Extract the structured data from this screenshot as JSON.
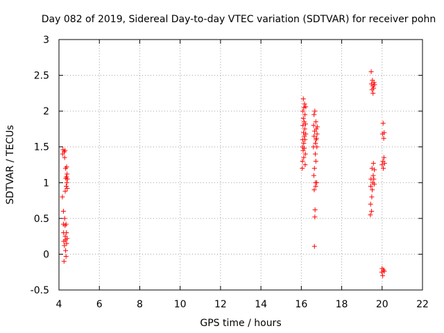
{
  "chart_data": {
    "type": "scatter",
    "title": "Day 082 of 2019, Sidereal Day-to-day VTEC variation (SDTVAR) for receiver pohn",
    "xlabel": "GPS time / hours",
    "ylabel": "SDTVAR / TECUs",
    "xlim": [
      4,
      22
    ],
    "ylim": [
      -0.5,
      3
    ],
    "xticks": [
      4,
      6,
      8,
      10,
      12,
      14,
      16,
      18,
      20,
      22
    ],
    "yticks": [
      -0.5,
      0,
      0.5,
      1,
      1.5,
      2,
      2.5,
      3
    ],
    "xtick_labels": [
      "4",
      "6",
      "8",
      "10",
      "12",
      "14",
      "16",
      "18",
      "20",
      "22"
    ],
    "ytick_labels": [
      "-0.5",
      "0",
      "0.5",
      "1",
      "1.5",
      "2",
      "2.5",
      "3"
    ],
    "grid": true,
    "marker": "plus",
    "color": "#ff0000",
    "series": [
      {
        "name": "SDTVAR",
        "points": [
          [
            4.17,
            0.8
          ],
          [
            4.18,
            1.4
          ],
          [
            4.2,
            1.46
          ],
          [
            4.22,
            0.6
          ],
          [
            4.22,
            0.42
          ],
          [
            4.23,
            0.3
          ],
          [
            4.24,
            0.18
          ],
          [
            4.25,
            -0.1
          ],
          [
            4.26,
            1.43
          ],
          [
            4.27,
            0.12
          ],
          [
            4.28,
            0.5
          ],
          [
            4.28,
            1.35
          ],
          [
            4.3,
            0.4
          ],
          [
            4.3,
            1.45
          ],
          [
            4.31,
            0.88
          ],
          [
            4.31,
            0.25
          ],
          [
            4.32,
            0.2
          ],
          [
            4.33,
            1.2
          ],
          [
            4.33,
            0.05
          ],
          [
            4.34,
            1.06
          ],
          [
            4.35,
            0.42
          ],
          [
            4.35,
            -0.03
          ],
          [
            4.36,
            0.95
          ],
          [
            4.37,
            1.08
          ],
          [
            4.37,
            0.3
          ],
          [
            4.38,
            1.22
          ],
          [
            4.38,
            0.15
          ],
          [
            4.39,
            1.0
          ],
          [
            4.4,
            1.12
          ],
          [
            4.4,
            0.22
          ],
          [
            4.41,
            0.92
          ],
          [
            4.42,
            1.05
          ],
          [
            16.05,
            1.2
          ],
          [
            16.06,
            1.3
          ],
          [
            16.06,
            1.5
          ],
          [
            16.07,
            1.6
          ],
          [
            16.08,
            1.8
          ],
          [
            16.08,
            2.0
          ],
          [
            16.09,
            1.45
          ],
          [
            16.1,
            1.9
          ],
          [
            16.1,
            2.17
          ],
          [
            16.11,
            1.7
          ],
          [
            16.12,
            1.35
          ],
          [
            16.12,
            1.55
          ],
          [
            16.13,
            2.05
          ],
          [
            16.14,
            1.85
          ],
          [
            16.15,
            1.65
          ],
          [
            16.15,
            1.48
          ],
          [
            16.16,
            2.1
          ],
          [
            16.17,
            1.75
          ],
          [
            16.18,
            1.95
          ],
          [
            16.18,
            1.6
          ],
          [
            16.19,
            1.25
          ],
          [
            16.2,
            1.4
          ],
          [
            16.21,
            1.82
          ],
          [
            16.22,
            1.68
          ],
          [
            16.22,
            2.06
          ],
          [
            16.6,
            1.5
          ],
          [
            16.61,
            1.8
          ],
          [
            16.62,
            1.1
          ],
          [
            16.63,
            1.65
          ],
          [
            16.63,
            1.95
          ],
          [
            16.64,
            0.9
          ],
          [
            16.65,
            0.11
          ],
          [
            16.65,
            1.2
          ],
          [
            16.66,
            1.72
          ],
          [
            16.67,
            0.52
          ],
          [
            16.67,
            2.0
          ],
          [
            16.68,
            0.62
          ],
          [
            16.69,
            1.4
          ],
          [
            16.7,
            1.0
          ],
          [
            16.7,
            1.55
          ],
          [
            16.71,
            0.95
          ],
          [
            16.72,
            1.3
          ],
          [
            16.72,
            1.85
          ],
          [
            16.73,
            1.6
          ],
          [
            16.74,
            1.75
          ],
          [
            16.75,
            1.62
          ],
          [
            16.76,
            1.0
          ],
          [
            16.77,
            1.5
          ],
          [
            16.78,
            1.68
          ],
          [
            16.79,
            1.78
          ],
          [
            19.42,
            0.55
          ],
          [
            19.43,
            0.7
          ],
          [
            19.44,
            0.95
          ],
          [
            19.45,
            1.05
          ],
          [
            19.46,
            2.55
          ],
          [
            19.47,
            2.38
          ],
          [
            19.48,
            0.6
          ],
          [
            19.49,
            0.8
          ],
          [
            19.5,
            1.2
          ],
          [
            19.5,
            2.3
          ],
          [
            19.51,
            0.9
          ],
          [
            19.52,
            2.43
          ],
          [
            19.53,
            1.0
          ],
          [
            19.54,
            2.35
          ],
          [
            19.55,
            2.25
          ],
          [
            19.56,
            1.1
          ],
          [
            19.57,
            1.27
          ],
          [
            19.58,
            2.32
          ],
          [
            19.59,
            1.05
          ],
          [
            19.6,
            2.4
          ],
          [
            19.61,
            0.98
          ],
          [
            19.62,
            1.18
          ],
          [
            19.63,
            2.37
          ],
          [
            19.98,
            -0.25
          ],
          [
            20.0,
            -0.2
          ],
          [
            20.0,
            1.25
          ],
          [
            20.02,
            1.68
          ],
          [
            20.03,
            -0.3
          ],
          [
            20.04,
            1.3
          ],
          [
            20.05,
            1.83
          ],
          [
            20.06,
            1.2
          ],
          [
            20.07,
            -0.22
          ],
          [
            20.08,
            1.62
          ],
          [
            20.09,
            1.35
          ],
          [
            20.1,
            1.7
          ],
          [
            20.11,
            -0.24
          ],
          [
            20.12,
            1.27
          ]
        ]
      }
    ]
  }
}
